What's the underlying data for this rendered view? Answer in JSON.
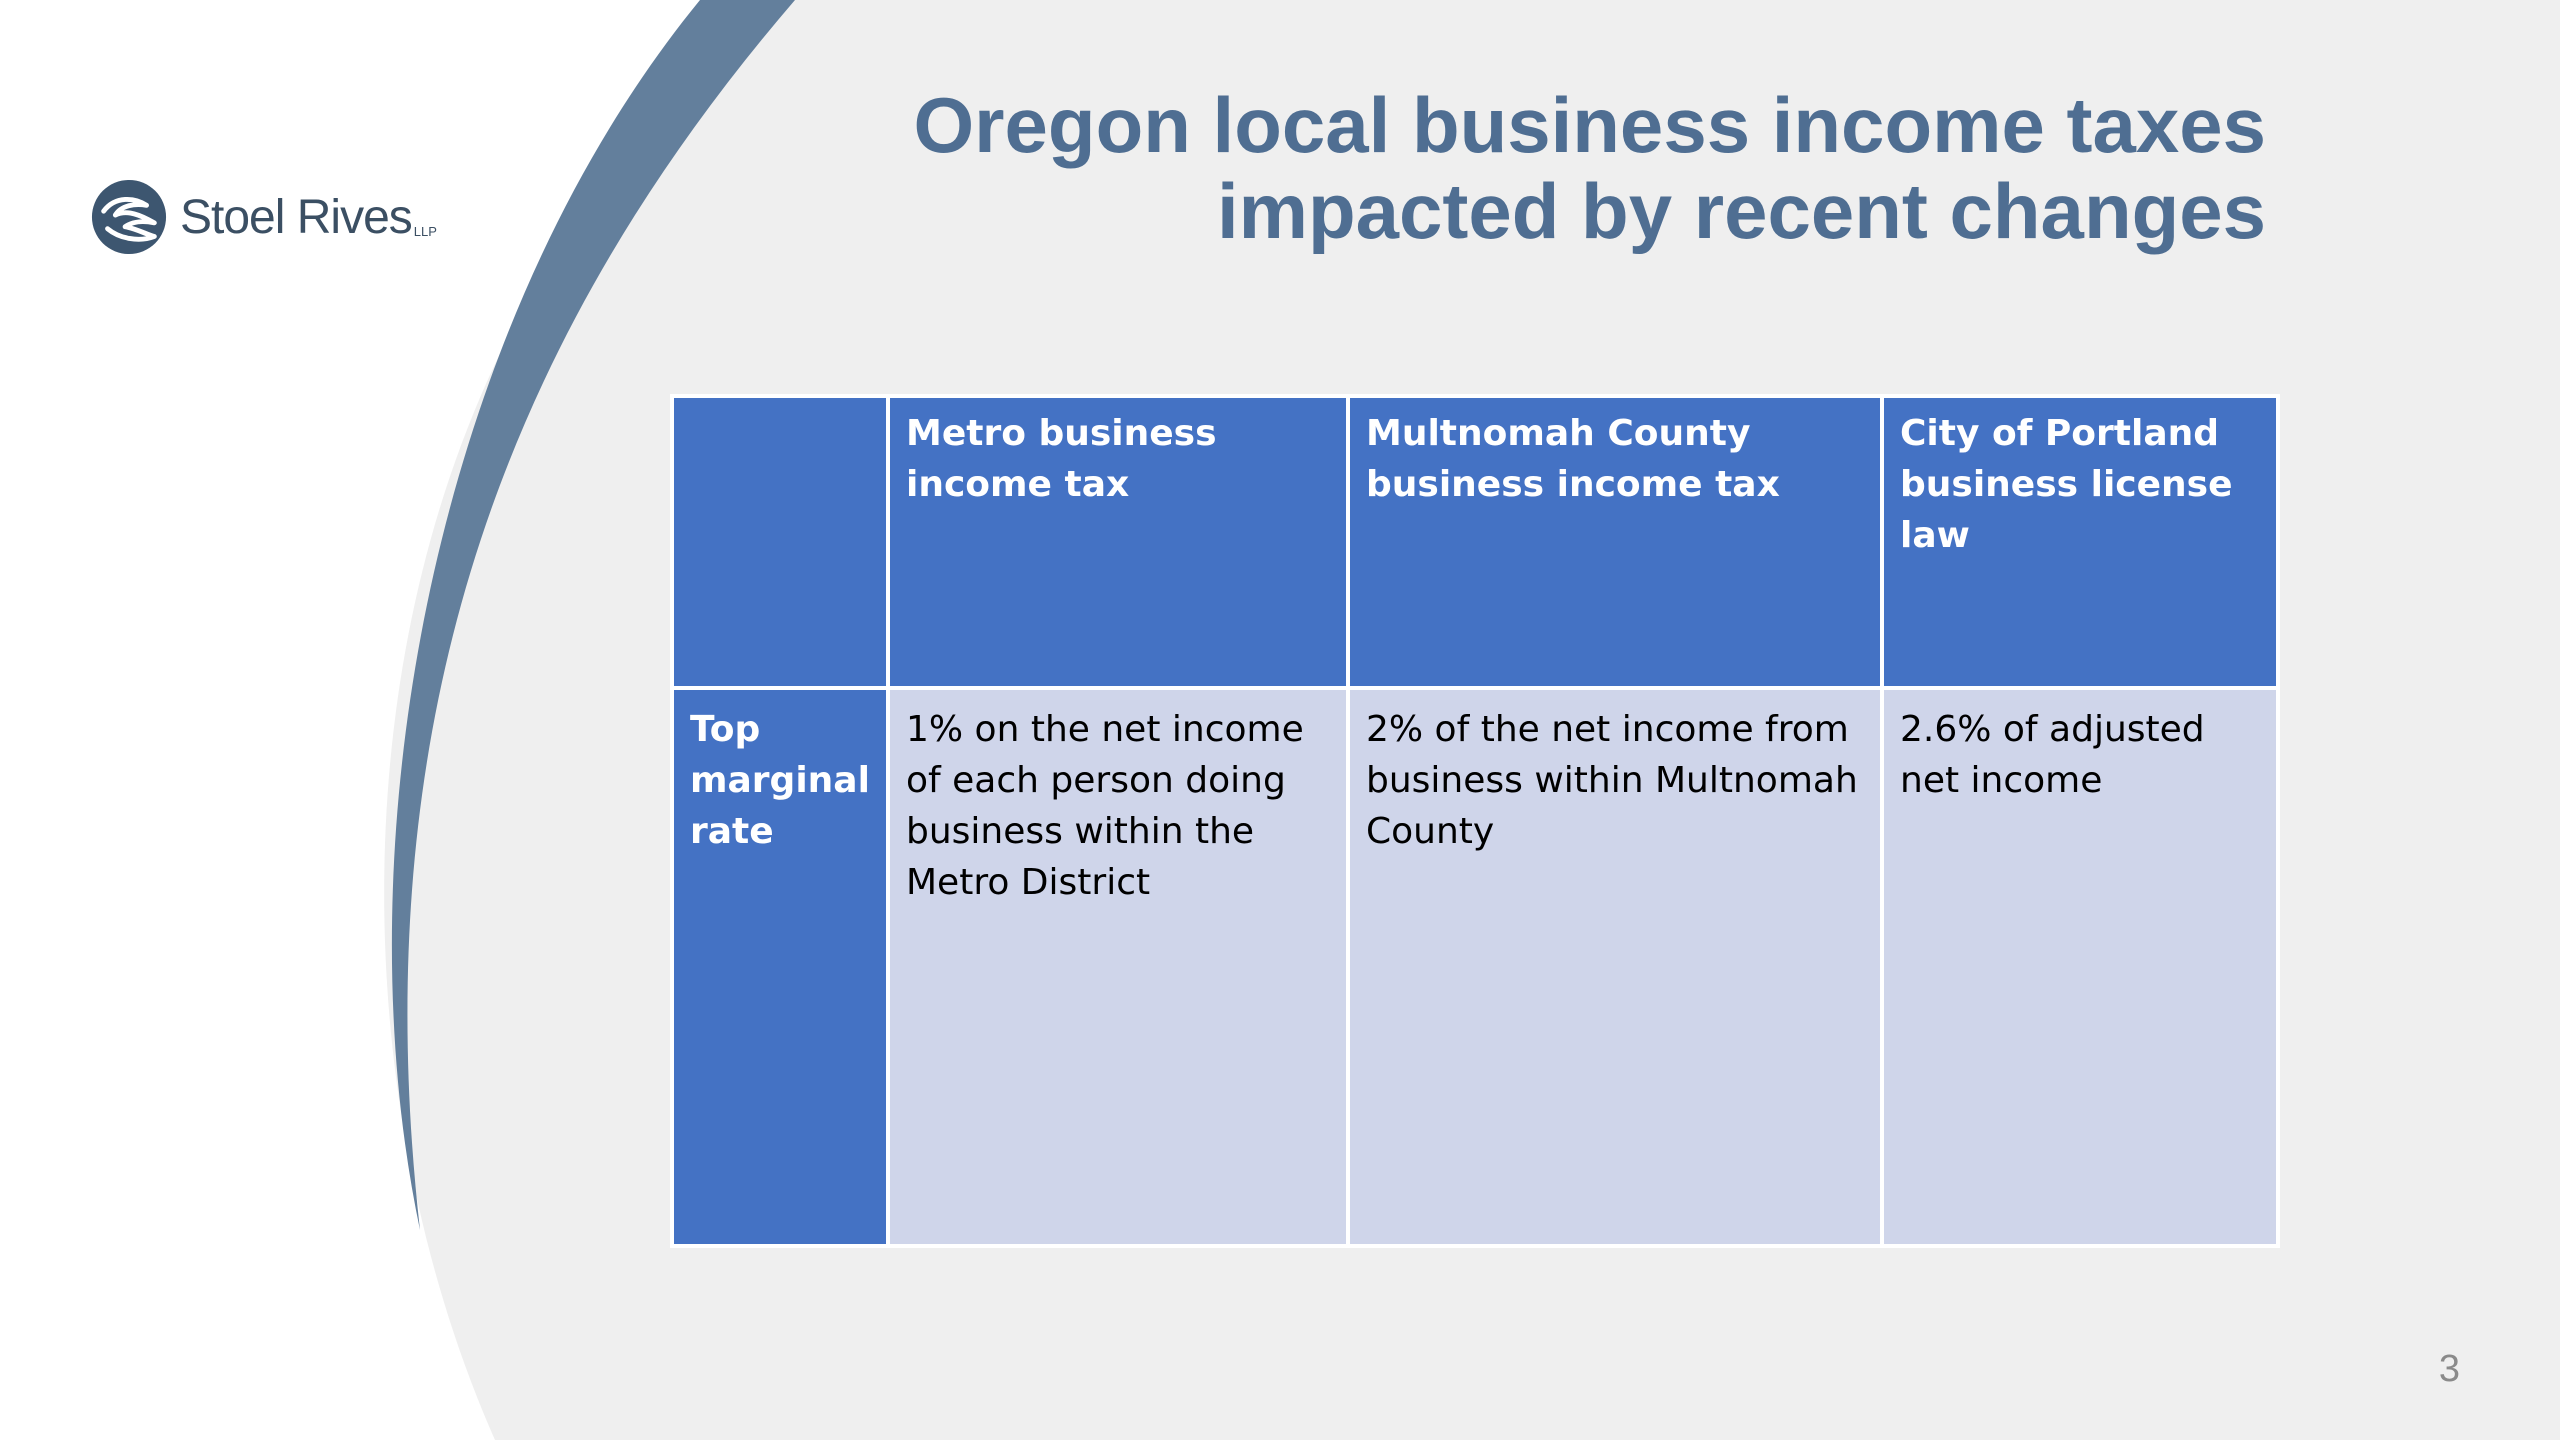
{
  "slide": {
    "title_line1": "Oregon local business income taxes",
    "title_line2": "impacted by recent changes",
    "page_number": "3"
  },
  "logo": {
    "name": "Stoel Rives",
    "suffix": "LLP"
  },
  "table": {
    "corner_header": "",
    "column_headers": [
      "Metro business income tax",
      "Multnomah County business income tax",
      "City of Portland business license law"
    ],
    "rows": [
      {
        "label": "Top marginal rate",
        "cells": [
          "1% on the net income of each person doing business within the Metro District",
          " 2% of the net income from business within Multnomah County",
          " 2.6% of adjusted net income"
        ]
      }
    ]
  },
  "colors": {
    "title": "#4f6e92",
    "header_fill": "#4472c4",
    "body_fill": "#cfd5ea",
    "page_gray": "#efefef",
    "arc_slate": "#637f9c"
  }
}
